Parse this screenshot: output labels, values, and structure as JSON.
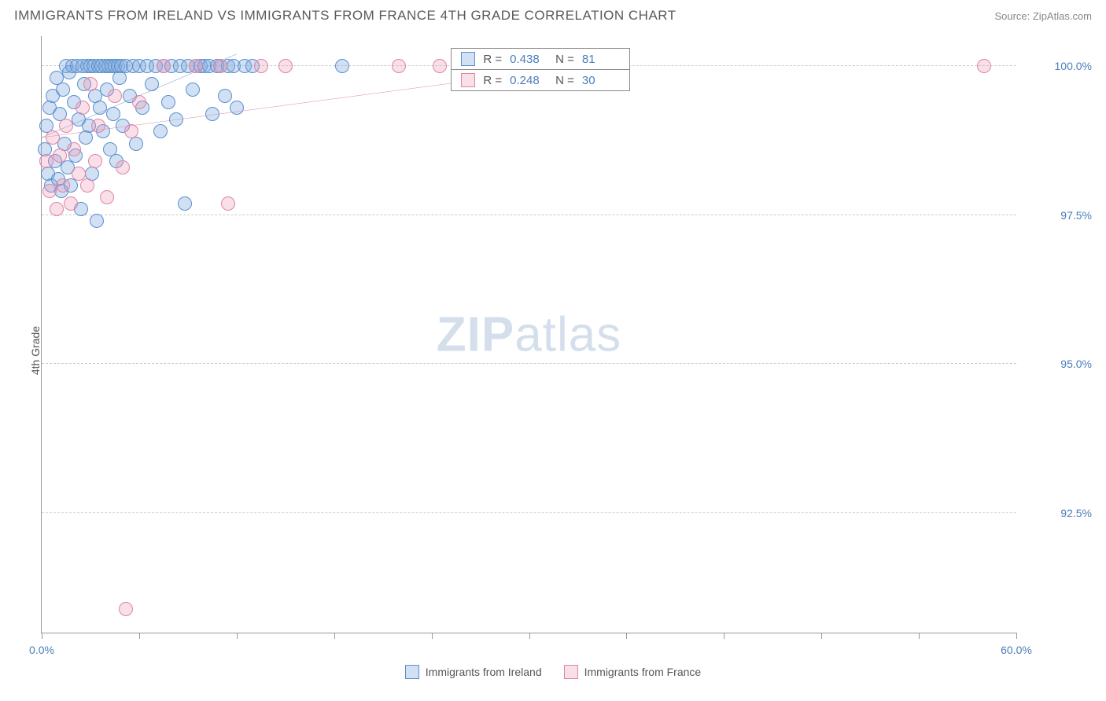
{
  "header": {
    "title": "IMMIGRANTS FROM IRELAND VS IMMIGRANTS FROM FRANCE 4TH GRADE CORRELATION CHART",
    "source": "Source: ZipAtlas.com"
  },
  "chart": {
    "type": "scatter",
    "ylabel": "4th Grade",
    "xlim": [
      0,
      60
    ],
    "ylim": [
      90.5,
      100.5
    ],
    "xtick_positions": [
      0,
      6,
      12,
      18,
      24,
      30,
      36,
      42,
      48,
      54,
      60
    ],
    "xtick_labels": {
      "0": "0.0%",
      "60": "60.0%"
    },
    "ytick_positions": [
      92.5,
      95.0,
      97.5,
      100.0
    ],
    "ytick_labels": [
      "92.5%",
      "95.0%",
      "97.5%",
      "100.0%"
    ],
    "background_color": "#ffffff",
    "grid_color": "#cccccc",
    "axis_color": "#999999",
    "marker_radius": 9,
    "marker_border_width": 1.5,
    "series": [
      {
        "name": "Immigrants from Ireland",
        "fill_color": "rgba(123,169,220,0.35)",
        "stroke_color": "#5b8fd0",
        "trend_color": "#2a5fa8",
        "trend": {
          "x1": 0,
          "y1": 98.8,
          "x2": 12,
          "y2": 100.2
        },
        "points": [
          [
            0.2,
            98.6
          ],
          [
            0.3,
            99.0
          ],
          [
            0.4,
            98.2
          ],
          [
            0.5,
            99.3
          ],
          [
            0.6,
            98.0
          ],
          [
            0.7,
            99.5
          ],
          [
            0.8,
            98.4
          ],
          [
            0.9,
            99.8
          ],
          [
            1.0,
            98.1
          ],
          [
            1.1,
            99.2
          ],
          [
            1.2,
            97.9
          ],
          [
            1.3,
            99.6
          ],
          [
            1.4,
            98.7
          ],
          [
            1.5,
            100.0
          ],
          [
            1.6,
            98.3
          ],
          [
            1.7,
            99.9
          ],
          [
            1.8,
            98.0
          ],
          [
            1.9,
            100.0
          ],
          [
            2.0,
            99.4
          ],
          [
            2.1,
            98.5
          ],
          [
            2.2,
            100.0
          ],
          [
            2.3,
            99.1
          ],
          [
            2.4,
            97.6
          ],
          [
            2.5,
            100.0
          ],
          [
            2.6,
            99.7
          ],
          [
            2.7,
            98.8
          ],
          [
            2.8,
            100.0
          ],
          [
            2.9,
            99.0
          ],
          [
            3.0,
            100.0
          ],
          [
            3.1,
            98.2
          ],
          [
            3.2,
            100.0
          ],
          [
            3.3,
            99.5
          ],
          [
            3.4,
            97.4
          ],
          [
            3.5,
            100.0
          ],
          [
            3.6,
            99.3
          ],
          [
            3.7,
            100.0
          ],
          [
            3.8,
            98.9
          ],
          [
            3.9,
            100.0
          ],
          [
            4.0,
            99.6
          ],
          [
            4.1,
            100.0
          ],
          [
            4.2,
            98.6
          ],
          [
            4.3,
            100.0
          ],
          [
            4.4,
            99.2
          ],
          [
            4.5,
            100.0
          ],
          [
            4.6,
            98.4
          ],
          [
            4.7,
            100.0
          ],
          [
            4.8,
            99.8
          ],
          [
            4.9,
            100.0
          ],
          [
            5.0,
            99.0
          ],
          [
            5.2,
            100.0
          ],
          [
            5.4,
            99.5
          ],
          [
            5.6,
            100.0
          ],
          [
            5.8,
            98.7
          ],
          [
            6.0,
            100.0
          ],
          [
            6.2,
            99.3
          ],
          [
            6.5,
            100.0
          ],
          [
            6.8,
            99.7
          ],
          [
            7.0,
            100.0
          ],
          [
            7.3,
            98.9
          ],
          [
            7.5,
            100.0
          ],
          [
            7.8,
            99.4
          ],
          [
            8.0,
            100.0
          ],
          [
            8.3,
            99.1
          ],
          [
            8.5,
            100.0
          ],
          [
            8.8,
            97.7
          ],
          [
            9.0,
            100.0
          ],
          [
            9.3,
            99.6
          ],
          [
            9.5,
            100.0
          ],
          [
            9.8,
            100.0
          ],
          [
            10.0,
            100.0
          ],
          [
            10.3,
            100.0
          ],
          [
            10.5,
            99.2
          ],
          [
            10.8,
            100.0
          ],
          [
            11.0,
            100.0
          ],
          [
            11.3,
            99.5
          ],
          [
            11.5,
            100.0
          ],
          [
            11.8,
            100.0
          ],
          [
            12.0,
            99.3
          ],
          [
            12.5,
            100.0
          ],
          [
            13.0,
            100.0
          ],
          [
            18.5,
            100.0
          ]
        ]
      },
      {
        "name": "Immigrants from France",
        "fill_color": "rgba(235,150,180,0.30)",
        "stroke_color": "#e183a8",
        "trend_color": "#d4507f",
        "trend": {
          "x1": 0,
          "y1": 98.8,
          "x2": 36,
          "y2": 100.1
        },
        "points": [
          [
            0.3,
            98.4
          ],
          [
            0.5,
            97.9
          ],
          [
            0.7,
            98.8
          ],
          [
            0.9,
            97.6
          ],
          [
            1.1,
            98.5
          ],
          [
            1.3,
            98.0
          ],
          [
            1.5,
            99.0
          ],
          [
            1.8,
            97.7
          ],
          [
            2.0,
            98.6
          ],
          [
            2.3,
            98.2
          ],
          [
            2.5,
            99.3
          ],
          [
            2.8,
            98.0
          ],
          [
            3.0,
            99.7
          ],
          [
            3.3,
            98.4
          ],
          [
            3.5,
            99.0
          ],
          [
            4.0,
            97.8
          ],
          [
            4.5,
            99.5
          ],
          [
            5.0,
            98.3
          ],
          [
            5.5,
            98.9
          ],
          [
            6.0,
            99.4
          ],
          [
            7.5,
            100.0
          ],
          [
            9.5,
            100.0
          ],
          [
            11.0,
            100.0
          ],
          [
            11.5,
            97.7
          ],
          [
            13.5,
            100.0
          ],
          [
            15.0,
            100.0
          ],
          [
            22.0,
            100.0
          ],
          [
            24.5,
            100.0
          ],
          [
            58.0,
            100.0
          ],
          [
            5.2,
            90.9
          ]
        ]
      }
    ],
    "stats_box": {
      "left_pct": 42,
      "top_pct": 2,
      "rows": [
        {
          "swatch_fill": "rgba(123,169,220,0.35)",
          "swatch_stroke": "#5b8fd0",
          "R": "0.438",
          "N": "81"
        },
        {
          "swatch_fill": "rgba(235,150,180,0.30)",
          "swatch_stroke": "#e183a8",
          "R": "0.248",
          "N": "30"
        }
      ]
    },
    "legend": [
      {
        "label": "Immigrants from Ireland",
        "fill": "rgba(123,169,220,0.35)",
        "stroke": "#5b8fd0"
      },
      {
        "label": "Immigrants from France",
        "fill": "rgba(235,150,180,0.30)",
        "stroke": "#e183a8"
      }
    ],
    "watermark": {
      "zip": "ZIP",
      "atlas": "atlas"
    }
  }
}
